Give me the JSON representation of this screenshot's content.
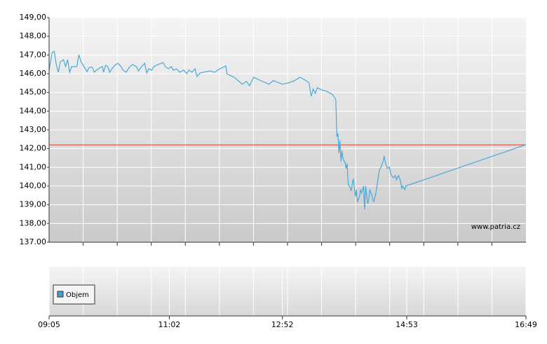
{
  "chart_data": {
    "type": "line",
    "watermark": "www.patria.cz",
    "volume_legend": "Objem",
    "volume_color": "#4a9fd0",
    "reference_line": 142.2,
    "reference_color": "#d04a3a",
    "ylim": [
      137,
      149
    ],
    "yticks": [
      {
        "value": 137,
        "label": "137.00"
      },
      {
        "value": 138,
        "label": "138,00"
      },
      {
        "value": 139,
        "label": "139,00"
      },
      {
        "value": 140,
        "label": "140,00"
      },
      {
        "value": 141,
        "label": "141,00"
      },
      {
        "value": 142,
        "label": "142,00"
      },
      {
        "value": 143,
        "label": "143,00"
      },
      {
        "value": 144,
        "label": "144,00"
      },
      {
        "value": 145,
        "label": "145,00"
      },
      {
        "value": 146,
        "label": "146,00"
      },
      {
        "value": 147,
        "label": "147,00"
      },
      {
        "value": 148,
        "label": "148,00"
      },
      {
        "value": 149,
        "label": "149,00"
      }
    ],
    "xlim": [
      545,
      1009
    ],
    "xticks": [
      {
        "value": 545,
        "label": "09:05"
      },
      {
        "value": 662,
        "label": "11:02"
      },
      {
        "value": 772,
        "label": "12:52"
      },
      {
        "value": 893,
        "label": "14:53"
      },
      {
        "value": 1009,
        "label": "16:49"
      }
    ],
    "grid": true,
    "x": [
      545,
      548,
      550,
      552,
      554,
      556,
      559,
      561,
      563,
      565,
      567,
      570,
      572,
      574,
      576,
      579,
      582,
      584,
      587,
      589,
      591,
      594,
      597,
      598,
      600,
      602,
      604,
      606,
      609,
      612,
      615,
      617,
      620,
      623,
      626,
      630,
      632,
      635,
      638,
      640,
      642,
      645,
      647,
      651,
      656,
      658,
      661,
      664,
      666,
      669,
      672,
      676,
      679,
      681,
      684,
      687,
      689,
      692,
      701,
      706,
      711,
      717,
      718,
      725,
      729,
      733,
      737,
      740,
      744,
      751,
      759,
      763,
      772,
      778,
      784,
      789,
      795,
      798,
      800,
      802,
      804,
      806,
      810,
      815,
      821,
      824,
      825,
      826,
      827,
      828,
      829,
      830,
      831,
      833,
      834,
      835,
      836,
      838,
      839,
      840,
      841,
      843,
      844,
      845,
      847,
      848,
      849,
      851,
      852,
      853,
      855,
      856,
      857,
      859,
      860,
      861,
      863,
      864,
      866,
      867,
      868,
      870,
      871,
      872,
      874,
      876,
      878,
      880,
      882,
      883,
      885,
      887,
      888,
      889,
      891,
      892,
      1009
    ],
    "series": [
      {
        "color": "#4aa8d8",
        "values": [
          146.19,
          147.13,
          147.2,
          146.49,
          146.08,
          146.64,
          146.75,
          146.38,
          146.75,
          146.08,
          146.38,
          146.38,
          146.38,
          147.01,
          146.64,
          146.38,
          146.11,
          146.34,
          146.34,
          146.08,
          146.19,
          146.3,
          146.38,
          146.08,
          146.45,
          146.38,
          146.08,
          146.26,
          146.45,
          146.56,
          146.38,
          146.19,
          146.08,
          146.34,
          146.49,
          146.38,
          146.15,
          146.38,
          146.56,
          146.04,
          146.26,
          146.19,
          146.38,
          146.49,
          146.6,
          146.38,
          146.26,
          146.38,
          146.19,
          146.26,
          146.08,
          146.19,
          146.0,
          146.19,
          146.08,
          146.26,
          145.85,
          146.04,
          146.15,
          146.08,
          146.26,
          146.41,
          146.0,
          145.81,
          145.63,
          145.44,
          145.59,
          145.36,
          145.81,
          145.63,
          145.44,
          145.63,
          145.44,
          145.51,
          145.63,
          145.81,
          145.63,
          145.51,
          144.8,
          145.18,
          144.95,
          145.25,
          145.14,
          145.06,
          144.88,
          144.61,
          142.63,
          142.81,
          141.76,
          142.44,
          141.31,
          141.88,
          141.46,
          141.24,
          140.94,
          141.2,
          140.11,
          139.89,
          139.74,
          140.11,
          140.38,
          139.44,
          139.81,
          139.14,
          139.44,
          139.81,
          139.63,
          140.0,
          138.76,
          140.0,
          139.06,
          139.25,
          139.81,
          139.51,
          139.25,
          139.18,
          139.63,
          140.0,
          140.75,
          140.94,
          141.01,
          141.31,
          141.61,
          141.31,
          140.94,
          141.01,
          140.56,
          140.45,
          140.56,
          140.34,
          140.56,
          140.26,
          139.89,
          140.0,
          139.81,
          140.0,
          142.21
        ]
      }
    ]
  }
}
